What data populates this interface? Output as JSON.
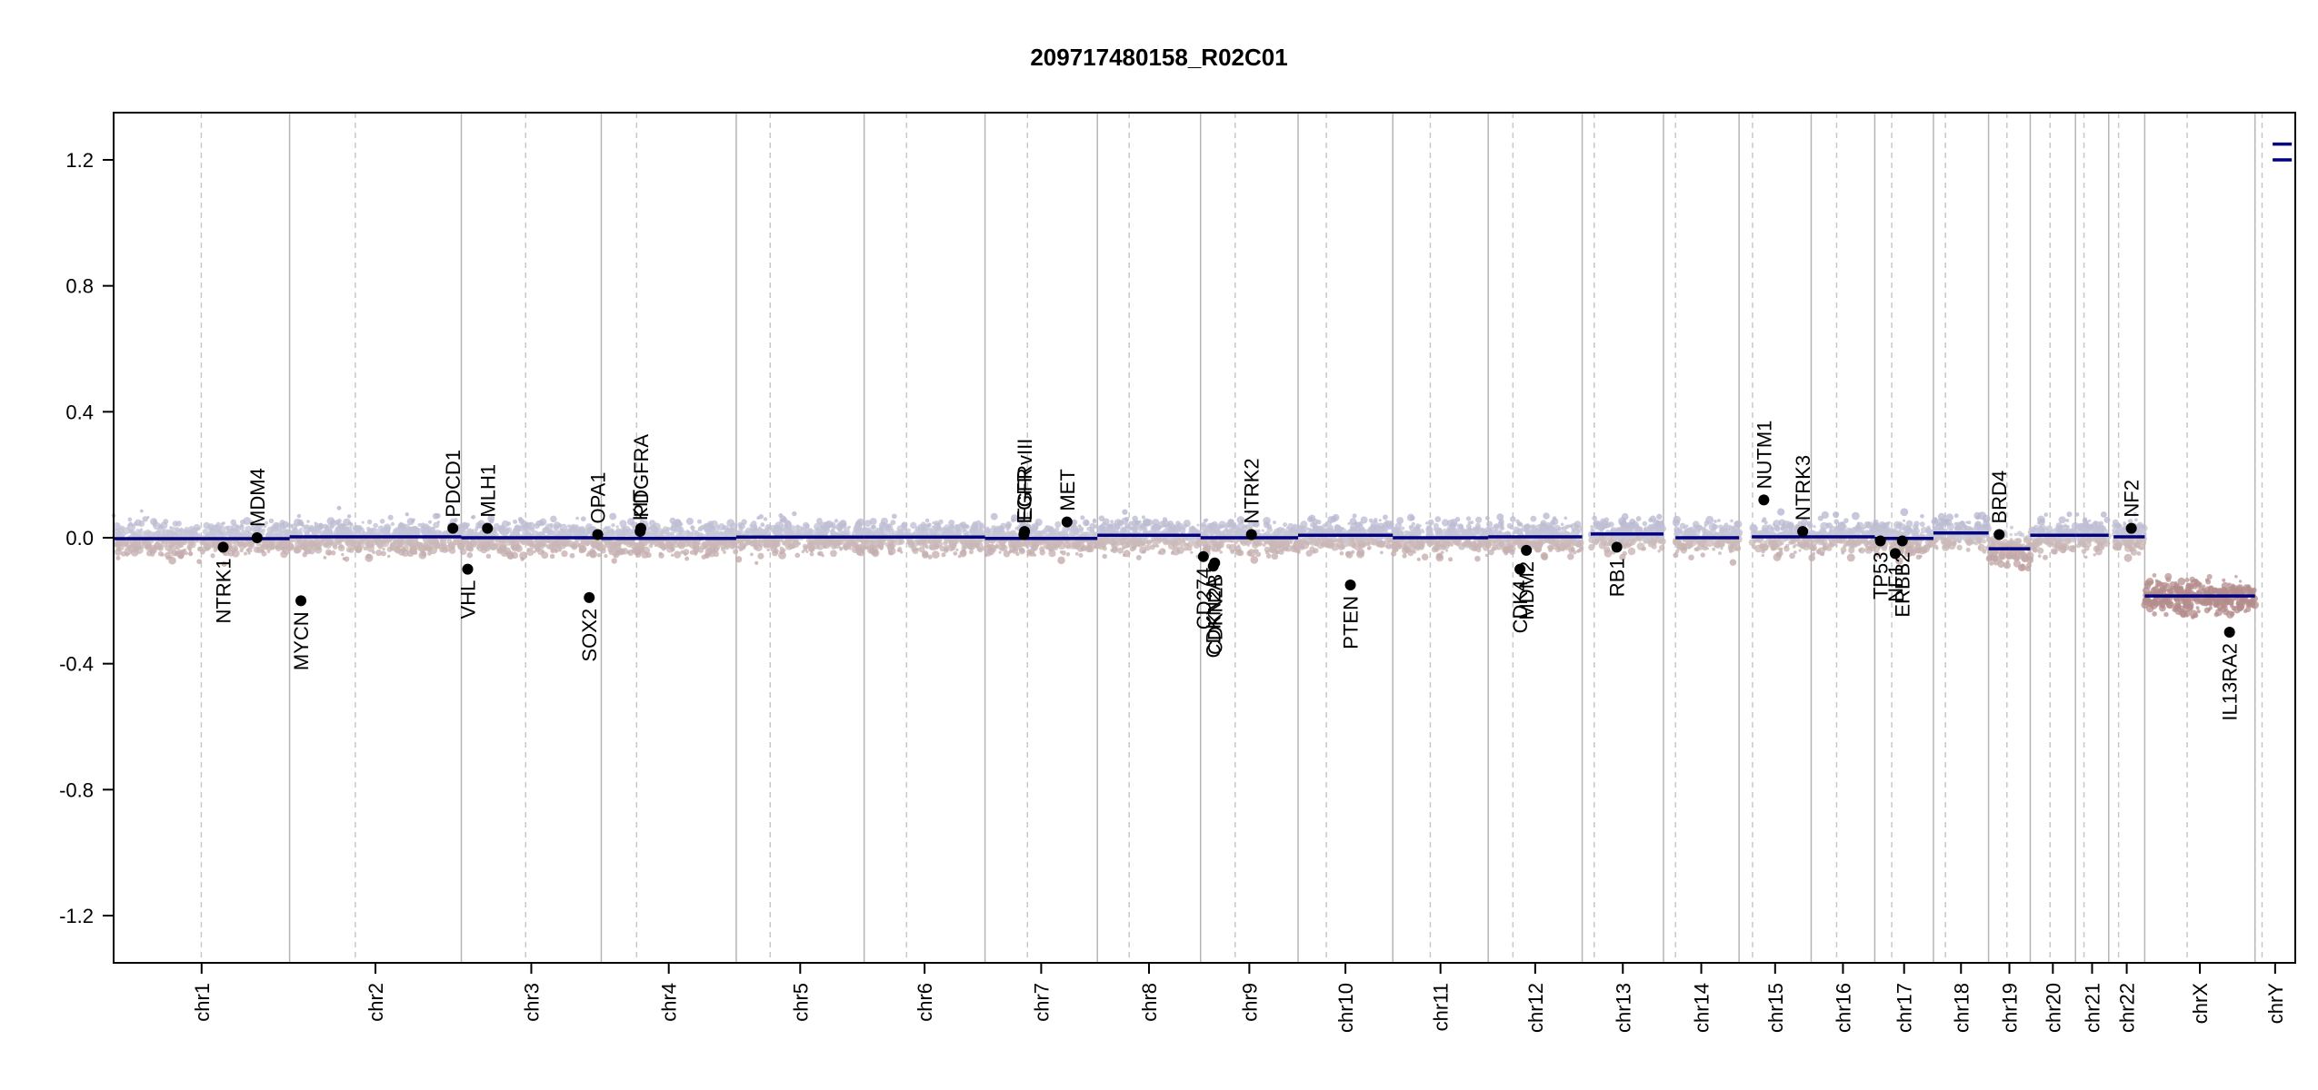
{
  "chart_data": {
    "type": "scatter",
    "title": "209717480158_R02C01",
    "xlabel": "",
    "ylabel": "",
    "ylim": [
      -1.35,
      1.35
    ],
    "y_ticks": [
      {
        "value": 1.2,
        "label": "1.2"
      },
      {
        "value": 0.8,
        "label": "0.8"
      },
      {
        "value": 0.4,
        "label": "0.4"
      },
      {
        "value": 0.0,
        "label": "0.0"
      },
      {
        "value": -0.4,
        "label": "-0.4"
      },
      {
        "value": -0.8,
        "label": "-0.8"
      },
      {
        "value": -1.2,
        "label": "-1.2"
      }
    ],
    "chromosomes": [
      {
        "name": "chr1",
        "start": 0,
        "end": 249,
        "centromere": 124
      },
      {
        "name": "chr2",
        "start": 249,
        "end": 492,
        "centromere": 93
      },
      {
        "name": "chr3",
        "start": 492,
        "end": 690,
        "centromere": 91
      },
      {
        "name": "chr4",
        "start": 690,
        "end": 881,
        "centromere": 50
      },
      {
        "name": "chr5",
        "start": 881,
        "end": 1062,
        "centromere": 48
      },
      {
        "name": "chr6",
        "start": 1062,
        "end": 1233,
        "centromere": 60
      },
      {
        "name": "chr7",
        "start": 1233,
        "end": 1392,
        "centromere": 60
      },
      {
        "name": "chr8",
        "start": 1392,
        "end": 1538,
        "centromere": 45
      },
      {
        "name": "chr9",
        "start": 1538,
        "end": 1676,
        "centromere": 49
      },
      {
        "name": "chr10",
        "start": 1676,
        "end": 1810,
        "centromere": 40
      },
      {
        "name": "chr11",
        "start": 1810,
        "end": 1945,
        "centromere": 53
      },
      {
        "name": "chr12",
        "start": 1945,
        "end": 2078,
        "centromere": 35
      },
      {
        "name": "chr13",
        "start": 2078,
        "end": 2193,
        "centromere": 17
      },
      {
        "name": "chr14",
        "start": 2193,
        "end": 2300,
        "centromere": 17
      },
      {
        "name": "chr15",
        "start": 2300,
        "end": 2402,
        "centromere": 19
      },
      {
        "name": "chr16",
        "start": 2402,
        "end": 2492,
        "centromere": 36
      },
      {
        "name": "chr17",
        "start": 2492,
        "end": 2575,
        "centromere": 24
      },
      {
        "name": "chr18",
        "start": 2575,
        "end": 2653,
        "centromere": 17
      },
      {
        "name": "chr19",
        "start": 2653,
        "end": 2712,
        "centromere": 26
      },
      {
        "name": "chr20",
        "start": 2712,
        "end": 2776,
        "centromere": 28
      },
      {
        "name": "chr21",
        "start": 2776,
        "end": 2823,
        "centromere": 12
      },
      {
        "name": "chr22",
        "start": 2823,
        "end": 2874,
        "centromere": 14
      },
      {
        "name": "chrX",
        "start": 2874,
        "end": 3030,
        "centromere": 60
      },
      {
        "name": "chrY",
        "start": 3030,
        "end": 3087,
        "centromere": 10
      }
    ],
    "segments": [
      {
        "chrom": "chr1",
        "x0": 0,
        "x1": 249,
        "y": -0.003
      },
      {
        "chrom": "chr2",
        "x0": 249,
        "x1": 492,
        "y": 0.003
      },
      {
        "chrom": "chr3",
        "x0": 492,
        "x1": 690,
        "y": 0.0
      },
      {
        "chrom": "chr4",
        "x0": 690,
        "x1": 881,
        "y": -0.002
      },
      {
        "chrom": "chr5",
        "x0": 881,
        "x1": 1062,
        "y": 0.002
      },
      {
        "chrom": "chr6",
        "x0": 1062,
        "x1": 1233,
        "y": 0.002
      },
      {
        "chrom": "chr7",
        "x0": 1233,
        "x1": 1392,
        "y": -0.002
      },
      {
        "chrom": "chr8",
        "x0": 1392,
        "x1": 1538,
        "y": 0.008
      },
      {
        "chrom": "chr9",
        "x0": 1538,
        "x1": 1676,
        "y": 0.0
      },
      {
        "chrom": "chr10",
        "x0": 1676,
        "x1": 1810,
        "y": 0.008
      },
      {
        "chrom": "chr11",
        "x0": 1810,
        "x1": 1945,
        "y": 0.0
      },
      {
        "chrom": "chr12",
        "x0": 1945,
        "x1": 2078,
        "y": 0.003
      },
      {
        "chrom": "chr13",
        "x0": 2090,
        "x1": 2193,
        "y": 0.012
      },
      {
        "chrom": "chr14",
        "x0": 2210,
        "x1": 2300,
        "y": 0.0
      },
      {
        "chrom": "chr15",
        "x0": 2318,
        "x1": 2402,
        "y": 0.003
      },
      {
        "chrom": "chr16",
        "x0": 2402,
        "x1": 2492,
        "y": 0.003
      },
      {
        "chrom": "chr17",
        "x0": 2492,
        "x1": 2575,
        "y": -0.002
      },
      {
        "chrom": "chr18",
        "x0": 2575,
        "x1": 2653,
        "y": 0.015
      },
      {
        "chrom": "chr19",
        "x0": 2653,
        "x1": 2682,
        "y": -0.035
      },
      {
        "chrom": "chr19",
        "x0": 2682,
        "x1": 2712,
        "y": -0.035
      },
      {
        "chrom": "chr20",
        "x0": 2712,
        "x1": 2776,
        "y": 0.008
      },
      {
        "chrom": "chr21",
        "x0": 2776,
        "x1": 2823,
        "y": 0.008
      },
      {
        "chrom": "chr22",
        "x0": 2830,
        "x1": 2874,
        "y": 0.003
      },
      {
        "chrom": "chrX",
        "x0": 2874,
        "x1": 3030,
        "y": -0.185
      },
      {
        "chrom": "chrY",
        "x0": 3055,
        "x1": 3082,
        "y": 1.2
      },
      {
        "chrom": "chrY",
        "x0": 3055,
        "x1": 3082,
        "y": 1.25
      }
    ],
    "genes": [
      {
        "name": "NTRK1",
        "x": 155,
        "y": -0.03,
        "label_side": "below"
      },
      {
        "name": "MDM4",
        "x": 203,
        "y": 0.0,
        "label_side": "above"
      },
      {
        "name": "MYCN",
        "x": 265,
        "y": -0.2,
        "label_side": "below"
      },
      {
        "name": "PDCD1",
        "x": 480,
        "y": 0.03,
        "label_side": "above"
      },
      {
        "name": "VHL",
        "x": 501,
        "y": -0.1,
        "label_side": "below"
      },
      {
        "name": "MLH1",
        "x": 529,
        "y": 0.03,
        "label_side": "above"
      },
      {
        "name": "SOX2",
        "x": 673,
        "y": -0.19,
        "label_side": "below"
      },
      {
        "name": "OPA1",
        "x": 685,
        "y": 0.01,
        "label_side": "above"
      },
      {
        "name": "KIT",
        "x": 745,
        "y": 0.02,
        "label_side": "above"
      },
      {
        "name": "PDGFRA",
        "x": 746,
        "y": 0.03,
        "label_side": "above"
      },
      {
        "name": "EGFR",
        "x": 1288,
        "y": 0.01,
        "label_side": "above"
      },
      {
        "name": "EGFRvIII",
        "x": 1289,
        "y": 0.02,
        "label_side": "above"
      },
      {
        "name": "MET",
        "x": 1349,
        "y": 0.05,
        "label_side": "above"
      },
      {
        "name": "CD274",
        "x": 1542,
        "y": -0.06,
        "label_side": "below"
      },
      {
        "name": "CDKN2A",
        "x": 1556,
        "y": -0.09,
        "label_side": "below"
      },
      {
        "name": "CDKN2B",
        "x": 1558,
        "y": -0.08,
        "label_side": "below"
      },
      {
        "name": "NTRK2",
        "x": 1610,
        "y": 0.01,
        "label_side": "above"
      },
      {
        "name": "PTEN",
        "x": 1750,
        "y": -0.15,
        "label_side": "below"
      },
      {
        "name": "CDK4",
        "x": 1990,
        "y": -0.1,
        "label_side": "below"
      },
      {
        "name": "MDM2",
        "x": 1999,
        "y": -0.04,
        "label_side": "below"
      },
      {
        "name": "RB1",
        "x": 2127,
        "y": -0.03,
        "label_side": "below"
      },
      {
        "name": "NUTM1",
        "x": 2335,
        "y": 0.12,
        "label_side": "above"
      },
      {
        "name": "NTRK3",
        "x": 2390,
        "y": 0.02,
        "label_side": "above"
      },
      {
        "name": "TP53",
        "x": 2500,
        "y": -0.01,
        "label_side": "below"
      },
      {
        "name": "NF1",
        "x": 2521,
        "y": -0.05,
        "label_side": "below"
      },
      {
        "name": "ERBB2",
        "x": 2531,
        "y": -0.01,
        "label_side": "below"
      },
      {
        "name": "BRD4",
        "x": 2668,
        "y": 0.01,
        "label_side": "above"
      },
      {
        "name": "NF2",
        "x": 2855,
        "y": 0.03,
        "label_side": "above"
      },
      {
        "name": "IL13RA2",
        "x": 2994,
        "y": -0.3,
        "label_side": "below"
      }
    ]
  }
}
